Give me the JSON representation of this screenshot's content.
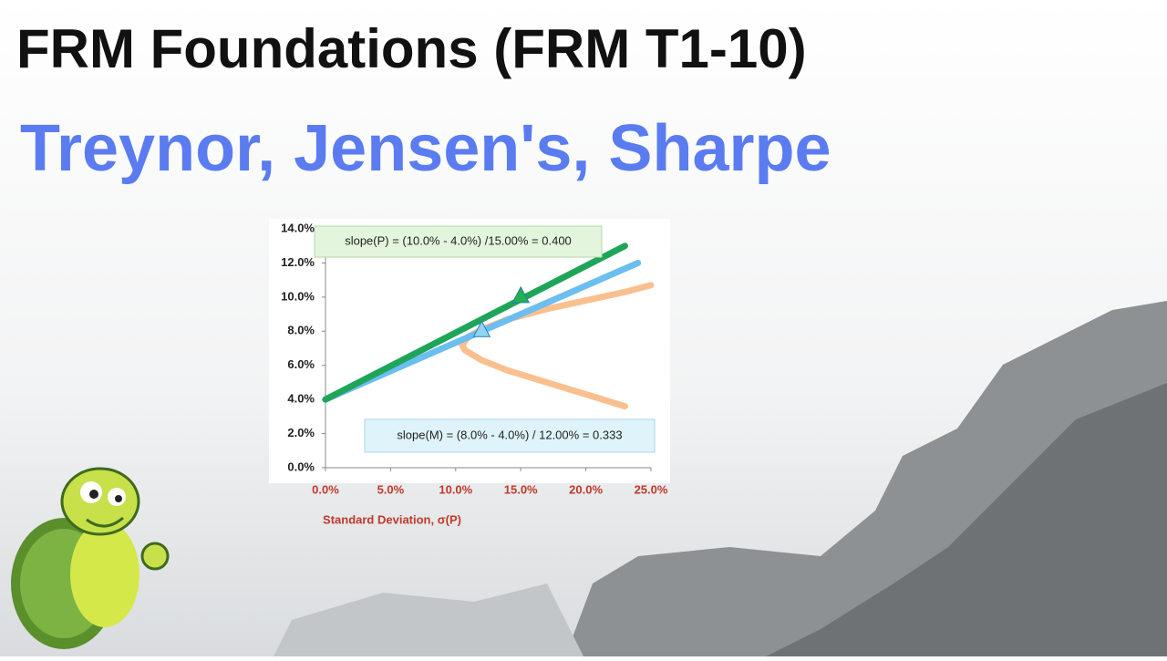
{
  "chart_data": {
    "type": "line",
    "title": "FRM Foundations (FRM T1-10)",
    "subtitle": "Treynor, Jensen's, Sharpe",
    "x_label": "Standard Deviation, σ(P)",
    "xlim": [
      0,
      25
    ],
    "ylim": [
      0,
      14
    ],
    "xticks": [
      {
        "value": 0,
        "label": "0.0%"
      },
      {
        "value": 5,
        "label": "5.0%"
      },
      {
        "value": 10,
        "label": "10.0%"
      },
      {
        "value": 15,
        "label": "15.0%"
      },
      {
        "value": 20,
        "label": "20.0%"
      },
      {
        "value": 25,
        "label": "25.0%"
      }
    ],
    "yticks": [
      {
        "value": 0,
        "label": "0.0%"
      },
      {
        "value": 2,
        "label": "2.0%"
      },
      {
        "value": 4,
        "label": "4.0%"
      },
      {
        "value": 6,
        "label": "6.0%"
      },
      {
        "value": 8,
        "label": "8.0%"
      },
      {
        "value": 10,
        "label": "10.0%"
      },
      {
        "value": 12,
        "label": "12.0%"
      },
      {
        "value": 14,
        "label": "14.0%"
      }
    ],
    "series": [
      {
        "color": "#f9c08f",
        "x": [
          23,
          20,
          17,
          14,
          12,
          10.7,
          10.5,
          11,
          12,
          14,
          17,
          20,
          23,
          25
        ],
        "values": [
          3.6,
          4.3,
          5.0,
          5.7,
          6.3,
          6.9,
          7.2,
          7.7,
          8.1,
          8.7,
          9.3,
          9.8,
          10.3,
          10.7
        ]
      },
      {
        "color": "#6cbdf0",
        "x": [
          0,
          24
        ],
        "values": [
          4,
          12
        ]
      },
      {
        "color": "#1fa55a",
        "x": [
          0,
          23
        ],
        "values": [
          4,
          13
        ]
      },
      {
        "color": "#22b14c",
        "marker": "triangle",
        "x": [
          15
        ],
        "values": [
          10
        ]
      },
      {
        "color": "#8fd3f5",
        "marker": "triangle",
        "x": [
          12
        ],
        "values": [
          8
        ]
      }
    ],
    "annotations": [
      "slope(P) = (10.0% - 4.0%) /15.00% = 0.400",
      "slope(M) = (8.0% - 4.0%) / 12.00% = 0.333"
    ]
  }
}
